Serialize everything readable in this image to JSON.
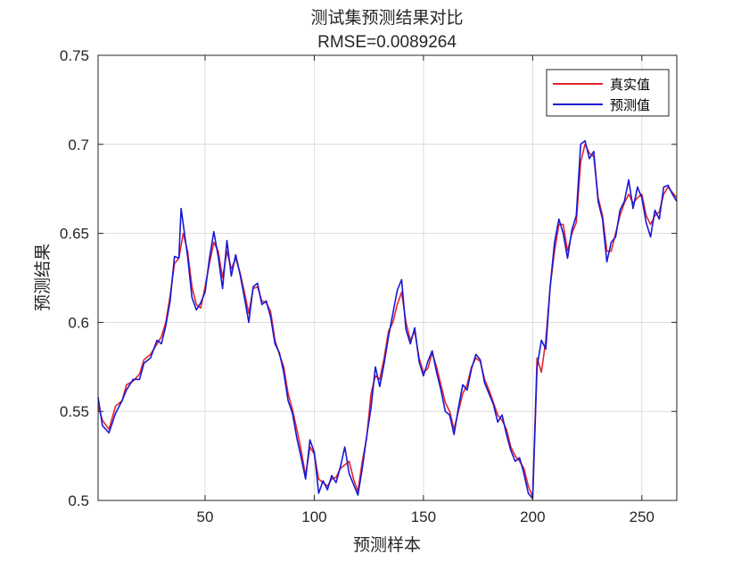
{
  "chart_data": {
    "type": "line",
    "title": "测试集预测结果对比",
    "subtitle": "RMSE=0.0089264",
    "xlabel": "预测样本",
    "ylabel": "预测结果",
    "xlim": [
      1,
      266
    ],
    "ylim": [
      0.5,
      0.75
    ],
    "xticks": [
      50,
      100,
      150,
      200,
      250
    ],
    "yticks": [
      0.5,
      0.55,
      0.6,
      0.65,
      0.7,
      0.75
    ],
    "ytick_labels": [
      "0.5",
      "0.55",
      "0.6",
      "0.65",
      "0.7",
      "0.75"
    ],
    "grid": true,
    "legend_position": "top-right",
    "series": [
      {
        "name": "真实值",
        "color": "#e3242b",
        "points": [
          [
            1,
            0.553
          ],
          [
            3,
            0.545
          ],
          [
            6,
            0.54
          ],
          [
            9,
            0.553
          ],
          [
            12,
            0.556
          ],
          [
            14,
            0.565
          ],
          [
            17,
            0.567
          ],
          [
            20,
            0.571
          ],
          [
            22,
            0.579
          ],
          [
            25,
            0.582
          ],
          [
            28,
            0.588
          ],
          [
            30,
            0.592
          ],
          [
            32,
            0.6
          ],
          [
            34,
            0.615
          ],
          [
            36,
            0.633
          ],
          [
            38,
            0.636
          ],
          [
            40,
            0.65
          ],
          [
            42,
            0.64
          ],
          [
            44,
            0.62
          ],
          [
            46,
            0.61
          ],
          [
            48,
            0.608
          ],
          [
            50,
            0.62
          ],
          [
            52,
            0.633
          ],
          [
            54,
            0.645
          ],
          [
            56,
            0.64
          ],
          [
            58,
            0.625
          ],
          [
            60,
            0.64
          ],
          [
            62,
            0.63
          ],
          [
            64,
            0.636
          ],
          [
            66,
            0.628
          ],
          [
            68,
            0.617
          ],
          [
            70,
            0.605
          ],
          [
            72,
            0.619
          ],
          [
            74,
            0.62
          ],
          [
            76,
            0.612
          ],
          [
            78,
            0.611
          ],
          [
            80,
            0.606
          ],
          [
            82,
            0.59
          ],
          [
            84,
            0.582
          ],
          [
            86,
            0.575
          ],
          [
            88,
            0.56
          ],
          [
            90,
            0.551
          ],
          [
            92,
            0.54
          ],
          [
            94,
            0.528
          ],
          [
            96,
            0.514
          ],
          [
            98,
            0.53
          ],
          [
            100,
            0.526
          ],
          [
            102,
            0.512
          ],
          [
            104,
            0.51
          ],
          [
            106,
            0.508
          ],
          [
            108,
            0.512
          ],
          [
            110,
            0.513
          ],
          [
            112,
            0.518
          ],
          [
            114,
            0.52
          ],
          [
            116,
            0.522
          ],
          [
            118,
            0.512
          ],
          [
            120,
            0.505
          ],
          [
            122,
            0.522
          ],
          [
            124,
            0.535
          ],
          [
            126,
            0.56
          ],
          [
            128,
            0.57
          ],
          [
            130,
            0.568
          ],
          [
            132,
            0.58
          ],
          [
            134,
            0.595
          ],
          [
            136,
            0.6
          ],
          [
            138,
            0.61
          ],
          [
            140,
            0.617
          ],
          [
            142,
            0.6
          ],
          [
            144,
            0.59
          ],
          [
            146,
            0.595
          ],
          [
            148,
            0.58
          ],
          [
            150,
            0.572
          ],
          [
            152,
            0.574
          ],
          [
            154,
            0.583
          ],
          [
            156,
            0.575
          ],
          [
            158,
            0.565
          ],
          [
            160,
            0.555
          ],
          [
            162,
            0.55
          ],
          [
            164,
            0.54
          ],
          [
            166,
            0.55
          ],
          [
            168,
            0.56
          ],
          [
            170,
            0.565
          ],
          [
            172,
            0.575
          ],
          [
            174,
            0.58
          ],
          [
            176,
            0.578
          ],
          [
            178,
            0.568
          ],
          [
            180,
            0.562
          ],
          [
            182,
            0.555
          ],
          [
            184,
            0.548
          ],
          [
            186,
            0.545
          ],
          [
            188,
            0.54
          ],
          [
            190,
            0.53
          ],
          [
            192,
            0.525
          ],
          [
            194,
            0.522
          ],
          [
            196,
            0.518
          ],
          [
            198,
            0.508
          ],
          [
            200,
            0.502
          ],
          [
            202,
            0.58
          ],
          [
            204,
            0.572
          ],
          [
            206,
            0.59
          ],
          [
            208,
            0.62
          ],
          [
            210,
            0.64
          ],
          [
            212,
            0.655
          ],
          [
            214,
            0.655
          ],
          [
            216,
            0.64
          ],
          [
            218,
            0.65
          ],
          [
            220,
            0.656
          ],
          [
            222,
            0.69
          ],
          [
            224,
            0.7
          ],
          [
            226,
            0.695
          ],
          [
            228,
            0.693
          ],
          [
            230,
            0.67
          ],
          [
            232,
            0.66
          ],
          [
            234,
            0.64
          ],
          [
            236,
            0.64
          ],
          [
            238,
            0.65
          ],
          [
            240,
            0.66
          ],
          [
            242,
            0.667
          ],
          [
            244,
            0.672
          ],
          [
            246,
            0.667
          ],
          [
            248,
            0.67
          ],
          [
            250,
            0.672
          ],
          [
            252,
            0.66
          ],
          [
            254,
            0.655
          ],
          [
            256,
            0.66
          ],
          [
            258,
            0.662
          ],
          [
            260,
            0.672
          ],
          [
            262,
            0.676
          ],
          [
            264,
            0.673
          ],
          [
            266,
            0.67
          ]
        ]
      },
      {
        "name": "预测值",
        "color": "#1818d6",
        "points": [
          [
            1,
            0.558
          ],
          [
            3,
            0.542
          ],
          [
            6,
            0.538
          ],
          [
            9,
            0.549
          ],
          [
            12,
            0.556
          ],
          [
            14,
            0.562
          ],
          [
            17,
            0.568
          ],
          [
            20,
            0.568
          ],
          [
            22,
            0.577
          ],
          [
            25,
            0.58
          ],
          [
            28,
            0.59
          ],
          [
            30,
            0.588
          ],
          [
            32,
            0.598
          ],
          [
            34,
            0.612
          ],
          [
            36,
            0.637
          ],
          [
            38,
            0.636
          ],
          [
            39,
            0.664
          ],
          [
            42,
            0.637
          ],
          [
            44,
            0.614
          ],
          [
            46,
            0.607
          ],
          [
            48,
            0.611
          ],
          [
            50,
            0.617
          ],
          [
            52,
            0.636
          ],
          [
            54,
            0.651
          ],
          [
            56,
            0.637
          ],
          [
            58,
            0.619
          ],
          [
            60,
            0.646
          ],
          [
            62,
            0.626
          ],
          [
            64,
            0.638
          ],
          [
            66,
            0.627
          ],
          [
            68,
            0.614
          ],
          [
            70,
            0.6
          ],
          [
            72,
            0.62
          ],
          [
            74,
            0.622
          ],
          [
            76,
            0.61
          ],
          [
            78,
            0.612
          ],
          [
            80,
            0.603
          ],
          [
            82,
            0.588
          ],
          [
            84,
            0.583
          ],
          [
            86,
            0.572
          ],
          [
            88,
            0.556
          ],
          [
            90,
            0.549
          ],
          [
            92,
            0.535
          ],
          [
            94,
            0.524
          ],
          [
            96,
            0.512
          ],
          [
            98,
            0.534
          ],
          [
            100,
            0.527
          ],
          [
            102,
            0.504
          ],
          [
            104,
            0.511
          ],
          [
            106,
            0.506
          ],
          [
            108,
            0.514
          ],
          [
            110,
            0.51
          ],
          [
            112,
            0.519
          ],
          [
            114,
            0.53
          ],
          [
            116,
            0.515
          ],
          [
            118,
            0.509
          ],
          [
            120,
            0.503
          ],
          [
            122,
            0.518
          ],
          [
            124,
            0.536
          ],
          [
            126,
            0.552
          ],
          [
            128,
            0.575
          ],
          [
            130,
            0.564
          ],
          [
            132,
            0.577
          ],
          [
            134,
            0.592
          ],
          [
            136,
            0.605
          ],
          [
            138,
            0.618
          ],
          [
            140,
            0.624
          ],
          [
            142,
            0.596
          ],
          [
            144,
            0.588
          ],
          [
            146,
            0.597
          ],
          [
            148,
            0.578
          ],
          [
            150,
            0.57
          ],
          [
            152,
            0.578
          ],
          [
            154,
            0.584
          ],
          [
            156,
            0.572
          ],
          [
            158,
            0.562
          ],
          [
            160,
            0.55
          ],
          [
            162,
            0.548
          ],
          [
            164,
            0.537
          ],
          [
            166,
            0.552
          ],
          [
            168,
            0.565
          ],
          [
            170,
            0.562
          ],
          [
            172,
            0.574
          ],
          [
            174,
            0.582
          ],
          [
            176,
            0.579
          ],
          [
            178,
            0.566
          ],
          [
            180,
            0.56
          ],
          [
            182,
            0.554
          ],
          [
            184,
            0.544
          ],
          [
            186,
            0.548
          ],
          [
            188,
            0.537
          ],
          [
            190,
            0.528
          ],
          [
            192,
            0.522
          ],
          [
            194,
            0.524
          ],
          [
            196,
            0.515
          ],
          [
            198,
            0.504
          ],
          [
            200,
            0.501
          ],
          [
            202,
            0.575
          ],
          [
            204,
            0.59
          ],
          [
            206,
            0.585
          ],
          [
            208,
            0.62
          ],
          [
            210,
            0.645
          ],
          [
            212,
            0.658
          ],
          [
            214,
            0.65
          ],
          [
            216,
            0.636
          ],
          [
            218,
            0.652
          ],
          [
            220,
            0.66
          ],
          [
            222,
            0.7
          ],
          [
            224,
            0.702
          ],
          [
            226,
            0.692
          ],
          [
            228,
            0.696
          ],
          [
            230,
            0.668
          ],
          [
            232,
            0.658
          ],
          [
            234,
            0.634
          ],
          [
            236,
            0.645
          ],
          [
            238,
            0.648
          ],
          [
            240,
            0.663
          ],
          [
            242,
            0.668
          ],
          [
            244,
            0.68
          ],
          [
            246,
            0.664
          ],
          [
            248,
            0.676
          ],
          [
            250,
            0.67
          ],
          [
            252,
            0.656
          ],
          [
            254,
            0.648
          ],
          [
            256,
            0.663
          ],
          [
            258,
            0.658
          ],
          [
            260,
            0.676
          ],
          [
            262,
            0.677
          ],
          [
            264,
            0.672
          ],
          [
            266,
            0.668
          ]
        ]
      }
    ]
  }
}
